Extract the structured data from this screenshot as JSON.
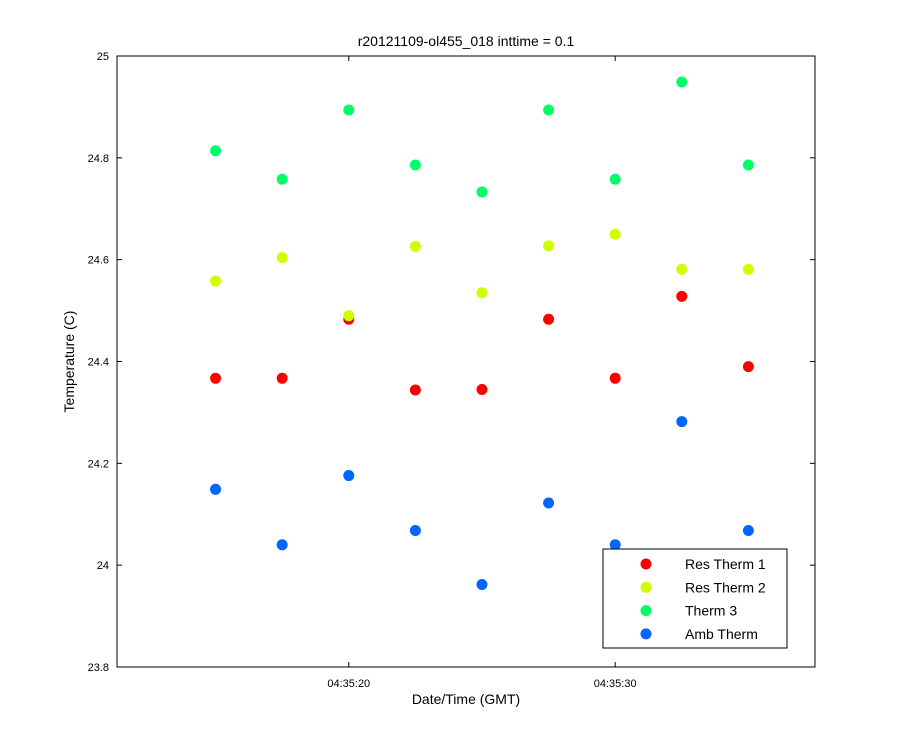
{
  "chart_data": {
    "type": "scatter",
    "title": "r20121109-ol455_018 inttime = 0.1",
    "xlabel": "Date/Time (GMT)",
    "ylabel": "Temperature (C)",
    "x": [
      "04:35:15",
      "04:35:17.5",
      "04:35:20",
      "04:35:22.5",
      "04:35:25",
      "04:35:27.5",
      "04:35:30",
      "04:35:32.5",
      "04:35:35"
    ],
    "xlim": [
      "04:35:11.3",
      "04:35:37.5"
    ],
    "ylim": [
      23.8,
      25
    ],
    "xticks": [
      "04:35:20",
      "04:35:30"
    ],
    "yticks": [
      23.8,
      24,
      24.2,
      24.4,
      24.6,
      24.8,
      25
    ],
    "ytick_labels": [
      "23.8",
      "24",
      "24.2",
      "24.4",
      "24.6",
      "24.8",
      "25"
    ],
    "grid": false,
    "legend_position": "bottom-right",
    "series": [
      {
        "name": "Res Therm 1",
        "color": "#ff0000",
        "values": [
          24.367,
          24.367,
          24.483,
          24.344,
          24.345,
          24.483,
          24.367,
          24.528,
          24.39
        ]
      },
      {
        "name": "Res Therm 2",
        "color": "#ccff00",
        "values": [
          24.558,
          24.604,
          24.49,
          24.626,
          24.535,
          24.627,
          24.65,
          24.581,
          24.581
        ]
      },
      {
        "name": "Therm 3",
        "color": "#00ff66",
        "values": [
          24.814,
          24.758,
          24.894,
          24.786,
          24.733,
          24.894,
          24.758,
          24.949,
          24.786
        ]
      },
      {
        "name": "Amb Therm",
        "color": "#0066ff",
        "values": [
          24.149,
          24.04,
          24.176,
          24.068,
          23.962,
          24.122,
          24.04,
          24.282,
          24.068
        ]
      }
    ]
  }
}
